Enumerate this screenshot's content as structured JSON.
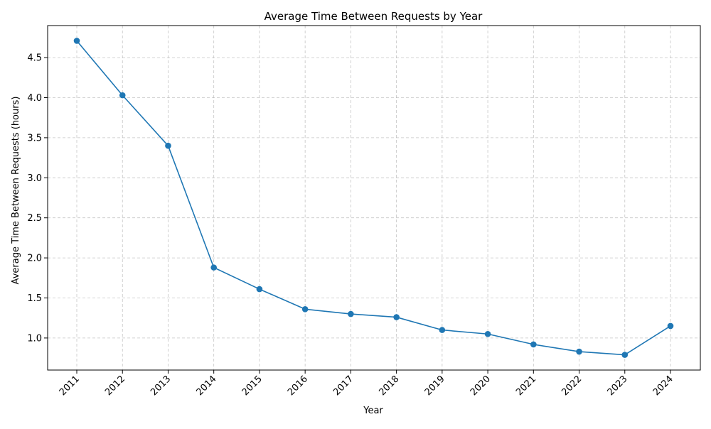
{
  "chart_data": {
    "type": "line",
    "title": "Average Time Between Requests by Year",
    "xlabel": "Year",
    "ylabel": "Average Time Between Requests (hours)",
    "categories": [
      "2011",
      "2012",
      "2013",
      "2014",
      "2015",
      "2016",
      "2017",
      "2018",
      "2019",
      "2020",
      "2021",
      "2022",
      "2023",
      "2024"
    ],
    "series": [
      {
        "values": [
          4.71,
          4.03,
          3.4,
          1.88,
          1.61,
          1.36,
          1.3,
          1.26,
          1.1,
          1.05,
          0.92,
          0.83,
          0.79,
          1.15
        ],
        "color": "#1f77b4",
        "marker": "circle"
      }
    ],
    "ylim": [
      0.6,
      4.9
    ],
    "yticks": [
      "1.0",
      "1.5",
      "2.0",
      "2.5",
      "3.0",
      "3.5",
      "4.0",
      "4.5"
    ],
    "x_tick_rotation": 45,
    "grid": true,
    "grid_style": "dashed",
    "grid_color": "#b0b0b0",
    "legend": "none"
  }
}
